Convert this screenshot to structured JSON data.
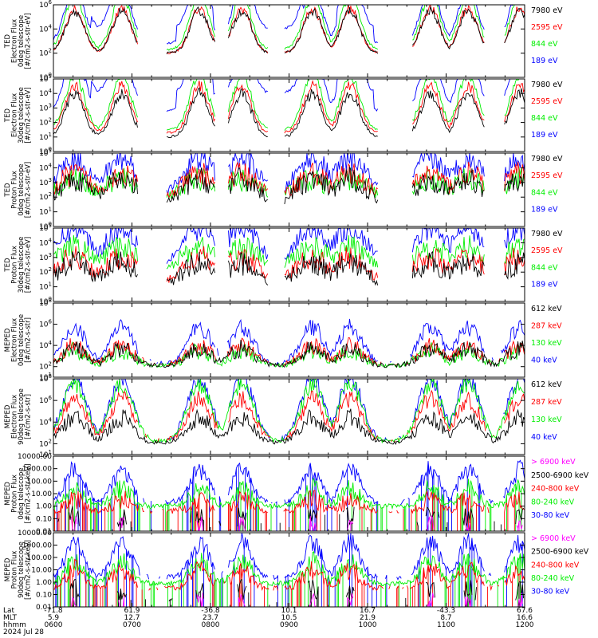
{
  "colors": {
    "black": "#000000",
    "red": "#ff0000",
    "green": "#00ee00",
    "blue": "#0000ff",
    "magenta": "#ff00ff"
  },
  "chart_data": [
    {
      "type": "line",
      "panel": "ted-electron-0deg",
      "ylabel": [
        "TED",
        "Electron Flux",
        "0deg telescope",
        "[#/cm2-s-str-eV]"
      ],
      "yscale": "log",
      "ylim": [
        1,
        1000000
      ],
      "yticks": [
        {
          "v": 1,
          "label": "10^0"
        },
        {
          "v": 100,
          "label": "10^2"
        },
        {
          "v": 10000,
          "label": "10^4"
        },
        {
          "v": 1000000,
          "label": "10^6"
        }
      ],
      "series": [
        {
          "name": "7980 eV",
          "color": "black",
          "base": 2,
          "amp": 3.5
        },
        {
          "name": "2595 eV",
          "color": "red",
          "base": 2,
          "amp": 3.7
        },
        {
          "name": "844 eV",
          "color": "green",
          "base": 2.3,
          "amp": 4.5
        },
        {
          "name": "189 eV",
          "color": "blue",
          "base": 2.8,
          "amp": 4.8
        }
      ]
    },
    {
      "type": "line",
      "panel": "ted-electron-30deg",
      "ylabel": [
        "TED",
        "Electron Flux",
        "30deg telescope",
        "[#/cm2-s-str-eV]"
      ],
      "yscale": "log",
      "ylim": [
        1,
        100000
      ],
      "yticks": [
        {
          "v": 1,
          "label": "10^0"
        },
        {
          "v": 10,
          "label": "10^1"
        },
        {
          "v": 100,
          "label": "10^2"
        },
        {
          "v": 1000,
          "label": "10^3"
        },
        {
          "v": 10000,
          "label": "10^4"
        },
        {
          "v": 100000,
          "label": "10^5"
        }
      ],
      "series": [
        {
          "name": "7980 eV",
          "color": "black",
          "base": 1,
          "amp": 3
        },
        {
          "name": "2595 eV",
          "color": "red",
          "base": 1.3,
          "amp": 3.2
        },
        {
          "name": "844 eV",
          "color": "green",
          "base": 1.5,
          "amp": 3.8
        },
        {
          "name": "189 eV",
          "color": "blue",
          "base": 2.8,
          "amp": 4.2
        }
      ]
    },
    {
      "type": "line",
      "panel": "ted-proton-0deg",
      "ylabel": [
        "TED",
        "Proton Flux",
        "0deg telescope",
        "[#/cm2-s-str-eV]"
      ],
      "yscale": "log",
      "ylim": [
        1,
        100000
      ],
      "yticks": [
        {
          "v": 1,
          "label": "10^0"
        },
        {
          "v": 10,
          "label": "10^1"
        },
        {
          "v": 100,
          "label": "10^2"
        },
        {
          "v": 1000,
          "label": "10^3"
        },
        {
          "v": 10000,
          "label": "10^4"
        },
        {
          "v": 100000,
          "label": "10^5"
        }
      ],
      "series": [
        {
          "name": "7980 eV",
          "color": "black",
          "base": 1.4,
          "amp": 1.8
        },
        {
          "name": "2595 eV",
          "color": "red",
          "base": 1.8,
          "amp": 1.8
        },
        {
          "name": "844 eV",
          "color": "green",
          "base": 1.9,
          "amp": 1.3
        },
        {
          "name": "189 eV",
          "color": "blue",
          "base": 2,
          "amp": 2.6
        }
      ]
    },
    {
      "type": "line",
      "panel": "ted-proton-30deg",
      "ylabel": [
        "TED",
        "Proton Flux",
        "30deg telescope",
        "[#/cm2-s-str-eV]"
      ],
      "yscale": "log",
      "ylim": [
        1,
        100000
      ],
      "yticks": [
        {
          "v": 1,
          "label": "10^0"
        },
        {
          "v": 10,
          "label": "10^1"
        },
        {
          "v": 100,
          "label": "10^2"
        },
        {
          "v": 1000,
          "label": "10^3"
        },
        {
          "v": 10000,
          "label": "10^4"
        },
        {
          "v": 100000,
          "label": "10^5"
        }
      ],
      "series": [
        {
          "name": "7980 eV",
          "color": "black",
          "base": 1,
          "amp": 1.6
        },
        {
          "name": "2595 eV",
          "color": "red",
          "base": 1.2,
          "amp": 1.8
        },
        {
          "name": "844 eV",
          "color": "green",
          "base": 2.2,
          "amp": 1.5
        },
        {
          "name": "189 eV",
          "color": "blue",
          "base": 2.4,
          "amp": 2.6
        }
      ]
    },
    {
      "type": "line",
      "panel": "meped-electron-0deg",
      "ylabel": [
        "MEPED",
        "Electron Flux",
        "0deg telescope",
        "[#/cm2-s-str]"
      ],
      "yscale": "log",
      "ylim": [
        10,
        100000000
      ],
      "yticks": [
        {
          "v": 10,
          "label": "10^1"
        },
        {
          "v": 100,
          "label": "10^2"
        },
        {
          "v": 10000,
          "label": "10^4"
        },
        {
          "v": 1000000,
          "label": "10^6"
        },
        {
          "v": 100000000,
          "label": "10^8"
        }
      ],
      "series": [
        {
          "name": "612 keV",
          "color": "black",
          "base": 2.1,
          "amp": 1.6
        },
        {
          "name": "287 keV",
          "color": "red",
          "base": 2.2,
          "amp": 1.8
        },
        {
          "name": "130 keV",
          "color": "green",
          "base": 2.1,
          "amp": 1.4
        },
        {
          "name": "40 keV",
          "color": "blue",
          "base": 2.3,
          "amp": 3.4
        }
      ]
    },
    {
      "type": "line",
      "panel": "meped-electron-90deg",
      "ylabel": [
        "MEPED",
        "Electron Flux",
        "90deg telescope",
        "[#/cm2-s-str]"
      ],
      "yscale": "log",
      "ylim": [
        10,
        100000000
      ],
      "yticks": [
        {
          "v": 10,
          "label": "10^1"
        },
        {
          "v": 100,
          "label": "10^2"
        },
        {
          "v": 10000,
          "label": "10^4"
        },
        {
          "v": 1000000,
          "label": "10^6"
        },
        {
          "v": 100000000,
          "label": "10^8"
        }
      ],
      "series": [
        {
          "name": "612 keV",
          "color": "black",
          "base": 2.1,
          "amp": 2.3
        },
        {
          "name": "287 keV",
          "color": "red",
          "base": 2.3,
          "amp": 3.8
        },
        {
          "name": "130 keV",
          "color": "green",
          "base": 2.2,
          "amp": 5.3
        },
        {
          "name": "40 keV",
          "color": "blue",
          "base": 2.3,
          "amp": 5.8
        }
      ]
    },
    {
      "type": "line",
      "panel": "meped-proton-0deg",
      "ylabel": [
        "MEPED",
        "Proton Flux",
        "0deg telescope",
        "[#/cm2-s-str-keV]"
      ],
      "yscale": "log",
      "ylim": [
        0.01,
        10000
      ],
      "yticks": [
        {
          "v": 0.01,
          "label": "0.01"
        },
        {
          "v": 0.1,
          "label": "0.10"
        },
        {
          "v": 1,
          "label": "1.00"
        },
        {
          "v": 10,
          "label": "10.00"
        },
        {
          "v": 100,
          "label": "100.00"
        },
        {
          "v": 1000,
          "label": "1000.00"
        },
        {
          "v": 10000,
          "label": "10000.00"
        }
      ],
      "series": [
        {
          "name": "> 6900 keV",
          "color": "magenta",
          "base": -1.9,
          "amp": 0.3
        },
        {
          "name": "2500-6900 keV",
          "color": "black",
          "base": -1.4,
          "amp": 0.6
        },
        {
          "name": "240-800 keV",
          "color": "red",
          "base": -0.4,
          "amp": 0.9
        },
        {
          "name": "80-240 keV",
          "color": "green",
          "base": 0,
          "amp": 1.4
        },
        {
          "name": "30-80 keV",
          "color": "blue",
          "base": 0.3,
          "amp": 2.6
        }
      ]
    },
    {
      "type": "line",
      "panel": "meped-proton-90deg",
      "ylabel": [
        "MEPED",
        "Proton Flux",
        "90deg telescope",
        "[#/cm2-s-str-keV]"
      ],
      "yscale": "log",
      "ylim": [
        0.01,
        10000
      ],
      "yticks": [
        {
          "v": 0.01,
          "label": "0.01"
        },
        {
          "v": 0.1,
          "label": "0.10"
        },
        {
          "v": 1,
          "label": "1.00"
        },
        {
          "v": 10,
          "label": "10.00"
        },
        {
          "v": 100,
          "label": "100.00"
        },
        {
          "v": 1000,
          "label": "1000.00"
        },
        {
          "v": 10000,
          "label": "10000.00"
        }
      ],
      "series": [
        {
          "name": "> 6900 keV",
          "color": "magenta",
          "base": -1.9,
          "amp": 0.4
        },
        {
          "name": "2500-6900 keV",
          "color": "black",
          "base": -1.5,
          "amp": 0.9
        },
        {
          "name": "240-800 keV",
          "color": "red",
          "base": -0.5,
          "amp": 1.5
        },
        {
          "name": "80-240 keV",
          "color": "green",
          "base": -0.1,
          "amp": 1.8
        },
        {
          "name": "30-80 keV",
          "color": "blue",
          "base": 0.4,
          "amp": 2.8
        }
      ]
    }
  ],
  "xaxis": {
    "row_labels": [
      "Lat",
      "MLT",
      "hhmm",
      "2024 Jul 28"
    ],
    "ticks": [
      {
        "t": 0,
        "lat": "-71.8",
        "mlt": "5.9",
        "hhmm": "0600"
      },
      {
        "t": 1,
        "lat": "61.9",
        "mlt": "12.7",
        "hhmm": "0700"
      },
      {
        "t": 2,
        "lat": "-36.8",
        "mlt": "23.7",
        "hhmm": "0800"
      },
      {
        "t": 3,
        "lat": "10.1",
        "mlt": "10.5",
        "hhmm": "0900"
      },
      {
        "t": 4,
        "lat": "16.7",
        "mlt": "21.9",
        "hhmm": "1000"
      },
      {
        "t": 5,
        "lat": "-43.3",
        "mlt": "8.7",
        "hhmm": "1100"
      },
      {
        "t": 6,
        "lat": "67.6",
        "mlt": "16.6",
        "hhmm": "1200"
      }
    ]
  }
}
